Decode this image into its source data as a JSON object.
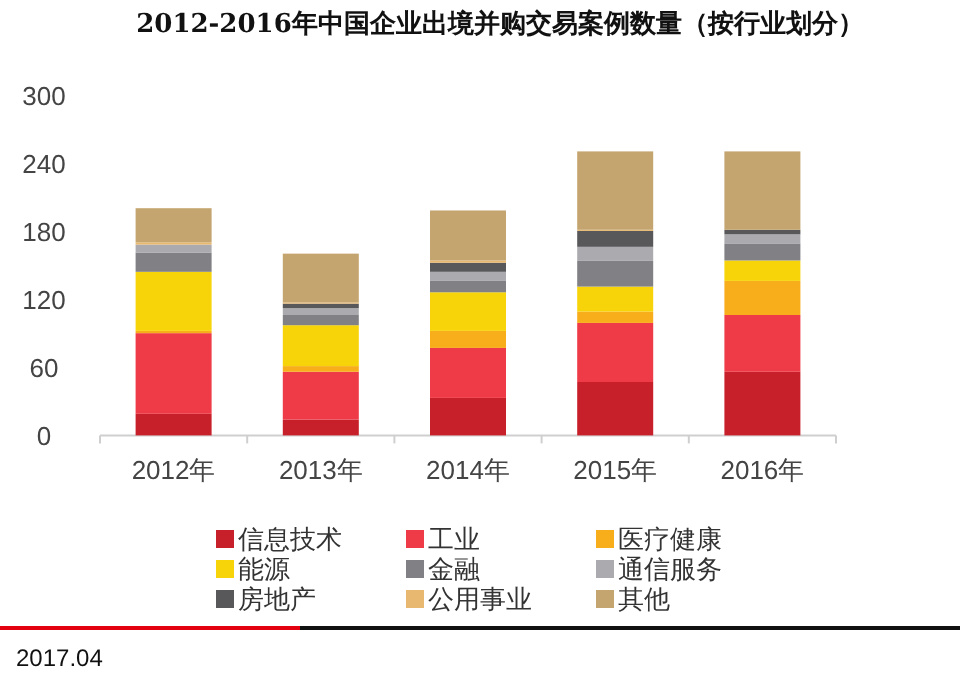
{
  "chart_data": {
    "type": "bar",
    "stacked": true,
    "title": "2012-2016年中国企业出境并购交易案例数量（按行业划分）",
    "categories": [
      "2012年",
      "2013年",
      "2014年",
      "2015年",
      "2016年"
    ],
    "series": [
      {
        "name": "信息技术",
        "color": "#c8202a",
        "values": [
          19,
          14,
          33,
          47,
          56
        ]
      },
      {
        "name": "工业",
        "color": "#ef3a47",
        "values": [
          71,
          42,
          44,
          52,
          50
        ]
      },
      {
        "name": "医疗健康",
        "color": "#f8ad1b",
        "values": [
          2,
          5,
          15,
          10,
          30
        ]
      },
      {
        "name": "能源",
        "color": "#f7d40a",
        "values": [
          52,
          36,
          34,
          22,
          18
        ]
      },
      {
        "name": "金融",
        "color": "#808085",
        "values": [
          17,
          9,
          10,
          23,
          15
        ]
      },
      {
        "name": "通信服务",
        "color": "#ababaf",
        "values": [
          7,
          6,
          8,
          12,
          8
        ]
      },
      {
        "name": "房地产",
        "color": "#58585b",
        "values": [
          0,
          4,
          8,
          14,
          4
        ]
      },
      {
        "name": "公用事业",
        "color": "#e8b870",
        "values": [
          2,
          1,
          2,
          1,
          0
        ]
      },
      {
        "name": "其他",
        "color": "#c4a56f",
        "values": [
          30,
          43,
          44,
          69,
          69
        ]
      }
    ],
    "ylim": [
      0,
      300
    ],
    "yticks": [
      0,
      60,
      120,
      180,
      240,
      300
    ],
    "legend": "bottom",
    "annotations": [
      "2017.04"
    ]
  }
}
